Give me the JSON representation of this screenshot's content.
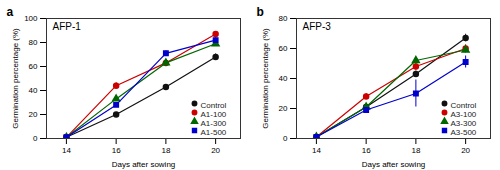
{
  "chart_data": [
    {
      "type": "line",
      "title": "AFP-1",
      "annotations": [
        "a"
      ],
      "xlabel": "Days after sowing",
      "ylabel": "Germination percentage (%)",
      "x": [
        14,
        16,
        18,
        20
      ],
      "xlim": [
        13.2,
        21
      ],
      "xticks": [
        14,
        16,
        18,
        20
      ],
      "ylim": [
        0,
        100
      ],
      "yticks": [
        0,
        20,
        40,
        60,
        80,
        100
      ],
      "legend": "lower right",
      "grid": false,
      "series": [
        {
          "name": "Control",
          "color": "#111111",
          "marker": "circle",
          "line_style": "solid",
          "values": [
            1,
            20,
            43,
            68
          ],
          "errors": [
            0.3,
            1.5,
            2.0,
            2.5
          ]
        },
        {
          "name": "A1-100",
          "color": "#cc0000",
          "marker": "circle",
          "line_style": "solid",
          "values": [
            1,
            44,
            63,
            87
          ],
          "errors": [
            0.3,
            2.5,
            2.5,
            2.0
          ]
        },
        {
          "name": "A1-300",
          "color": "#006600",
          "marker": "triangle",
          "line_style": "solid",
          "values": [
            1,
            33,
            63,
            79
          ],
          "errors": [
            0.3,
            1.5,
            3.0,
            2.0
          ]
        },
        {
          "name": "A1-500",
          "color": "#0000cc",
          "marker": "square",
          "line_style": "solid",
          "values": [
            1,
            28,
            71,
            82
          ],
          "errors": [
            0.3,
            1.5,
            2.0,
            2.0
          ]
        }
      ]
    },
    {
      "type": "line",
      "title": "AFP-3",
      "annotations": [
        "b"
      ],
      "xlabel": "Days after sowing",
      "ylabel": "Germination percentage (%)",
      "x": [
        14,
        16,
        18,
        20
      ],
      "xlim": [
        13.2,
        21
      ],
      "xticks": [
        14,
        16,
        18,
        20
      ],
      "ylim": [
        0,
        80
      ],
      "yticks": [
        0,
        20,
        40,
        60,
        80
      ],
      "legend": "lower right",
      "grid": false,
      "series": [
        {
          "name": "Control",
          "color": "#111111",
          "marker": "circle",
          "line_style": "solid",
          "values": [
            1,
            21,
            43,
            67
          ],
          "errors": [
            0.3,
            1.5,
            2.0,
            2.5
          ]
        },
        {
          "name": "A3-100",
          "color": "#cc0000",
          "marker": "circle",
          "line_style": "solid",
          "values": [
            1,
            28,
            48,
            60
          ],
          "errors": [
            0.3,
            2.0,
            2.5,
            2.5
          ]
        },
        {
          "name": "A3-300",
          "color": "#006600",
          "marker": "triangle",
          "line_style": "solid",
          "values": [
            1,
            21,
            52,
            59
          ],
          "errors": [
            0.3,
            1.5,
            2.0,
            2.0
          ]
        },
        {
          "name": "A3-500",
          "color": "#0000cc",
          "marker": "square",
          "line_style": "solid",
          "values": [
            1,
            19,
            30,
            51
          ],
          "errors": [
            0.3,
            1.5,
            9.0,
            4.0
          ]
        }
      ]
    }
  ]
}
